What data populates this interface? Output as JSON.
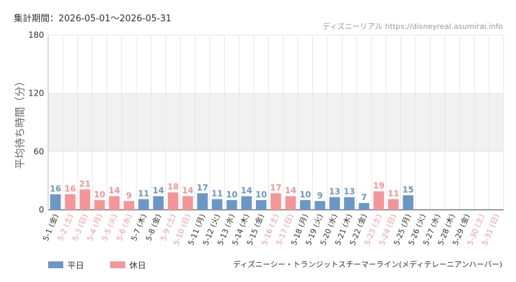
{
  "header": {
    "period_label": "集計期間：",
    "period": "2026-05-01～2026-05-31",
    "credit": "ディズニーリアル https://disneyreal.asumirai.info"
  },
  "footer": {
    "attraction": "ディズニーシー・トランジットスチーマーライン(メディテレーニアンハーバー)"
  },
  "colors": {
    "weekday": "#6b97c6",
    "holiday": "#f49598",
    "band": "#f1f1f1",
    "grid": "#e6e6e6",
    "axis": "#333333"
  },
  "chart_data": {
    "type": "bar",
    "ylabel": "平均待ち時間（分）",
    "ylim": [
      0,
      180
    ],
    "yticks": [
      0,
      60,
      120,
      180
    ],
    "grid": true,
    "legend_position": "bottom-left",
    "categories": [
      "5-1 (金)",
      "5-2 (土)",
      "5-3 (日)",
      "5-4 (月)",
      "5-5 (火)",
      "5-6 (水)",
      "5-7 (木)",
      "5-8 (金)",
      "5-9 (土)",
      "5-10 (日)",
      "5-11 (月)",
      "5-12 (火)",
      "5-13 (水)",
      "5-14 (木)",
      "5-15 (金)",
      "5-16 (土)",
      "5-17 (日)",
      "5-18 (月)",
      "5-19 (火)",
      "5-20 (水)",
      "5-21 (木)",
      "5-22 (金)",
      "5-23 (土)",
      "5-24 (日)",
      "5-25 (月)",
      "5-26 (火)",
      "5-27 (水)",
      "5-28 (木)",
      "5-29 (金)",
      "5-30 (土)",
      "5-31 (日)"
    ],
    "values": [
      16,
      16,
      21,
      10,
      14,
      9,
      11,
      14,
      18,
      14,
      17,
      11,
      10,
      14,
      10,
      17,
      14,
      10,
      9,
      13,
      13,
      7,
      19,
      11,
      15,
      null,
      null,
      null,
      null,
      null,
      null
    ],
    "day_type": [
      "weekday",
      "holiday",
      "holiday",
      "holiday",
      "holiday",
      "holiday",
      "weekday",
      "weekday",
      "holiday",
      "holiday",
      "weekday",
      "weekday",
      "weekday",
      "weekday",
      "weekday",
      "holiday",
      "holiday",
      "weekday",
      "weekday",
      "weekday",
      "weekday",
      "weekday",
      "holiday",
      "holiday",
      "weekday",
      "weekday",
      "weekday",
      "weekday",
      "weekday",
      "holiday",
      "holiday"
    ],
    "legend": [
      {
        "key": "weekday",
        "label": "平日"
      },
      {
        "key": "holiday",
        "label": "休日"
      }
    ]
  }
}
